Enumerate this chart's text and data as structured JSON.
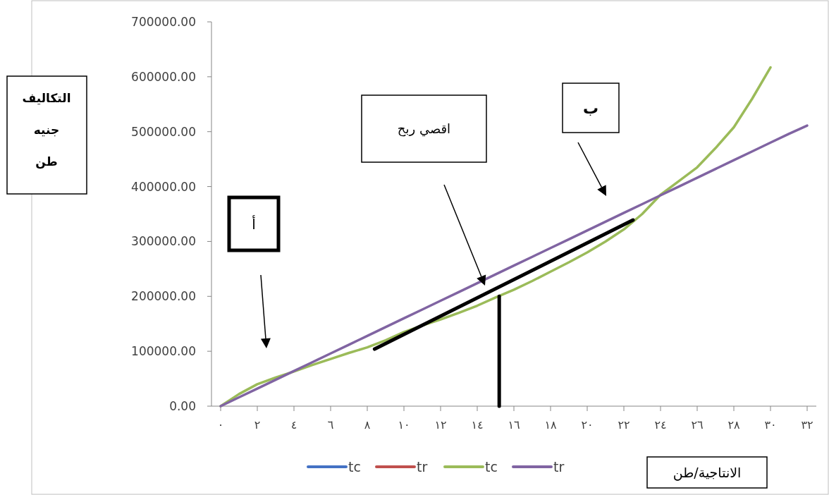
{
  "chart_data": {
    "type": "line",
    "xlabel": "الانتاجية/طن",
    "ylabel": "التكاليف جنيه طن",
    "annotations": [
      "أ",
      "اقصي ربح",
      "ب"
    ],
    "xlim": [
      -0.5,
      32.5
    ],
    "xticks": [
      {
        "value": 0,
        "label": "٠"
      },
      {
        "value": 2,
        "label": "٢"
      },
      {
        "value": 4,
        "label": "٤"
      },
      {
        "value": 6,
        "label": "٦"
      },
      {
        "value": 8,
        "label": "٨"
      },
      {
        "value": 10,
        "label": "١٠"
      },
      {
        "value": 12,
        "label": "١٢"
      },
      {
        "value": 14,
        "label": "١٤"
      },
      {
        "value": 16,
        "label": "١٦"
      },
      {
        "value": 18,
        "label": "١٨"
      },
      {
        "value": 20,
        "label": "٢٠"
      },
      {
        "value": 22,
        "label": "٢٢"
      },
      {
        "value": 24,
        "label": "٢٤"
      },
      {
        "value": 26,
        "label": "٢٦"
      },
      {
        "value": 28,
        "label": "٢٨"
      },
      {
        "value": 30,
        "label": "٣٠"
      },
      {
        "value": 32,
        "label": "٣٢"
      }
    ],
    "ylim": [
      0,
      700000
    ],
    "yticks": [
      {
        "value": 0,
        "label": "0.00"
      },
      {
        "value": 100000,
        "label": "100000.00"
      },
      {
        "value": 200000,
        "label": "200000.00"
      },
      {
        "value": 300000,
        "label": "300000.00"
      },
      {
        "value": 400000,
        "label": "400000.00"
      },
      {
        "value": 500000,
        "label": "500000.00"
      },
      {
        "value": 600000,
        "label": "600000.00"
      },
      {
        "value": 700000,
        "label": "700000.00"
      }
    ],
    "x": [
      0,
      1,
      2,
      3,
      4,
      5,
      6,
      7,
      8,
      9,
      10,
      11,
      12,
      13,
      14,
      15,
      16,
      17,
      18,
      19,
      20,
      21,
      22,
      23,
      24,
      25,
      26,
      27,
      28,
      29,
      30,
      31,
      32
    ],
    "legend": "bottom",
    "grid": false,
    "marker": "none",
    "line_style": "solid",
    "series": [
      {
        "name": "tc",
        "color": "#4472c4",
        "values": [
          null,
          null,
          null,
          null,
          null,
          null,
          null,
          null,
          null,
          null,
          null,
          null,
          null,
          null,
          null,
          null,
          null,
          null,
          null,
          null,
          null,
          null,
          null,
          null,
          null,
          null,
          null,
          null,
          null,
          null,
          null,
          null,
          null
        ]
      },
      {
        "name": "tr",
        "color": "#c0504d",
        "values": [
          null,
          null,
          null,
          null,
          null,
          null,
          null,
          null,
          null,
          null,
          null,
          null,
          null,
          null,
          null,
          null,
          null,
          null,
          null,
          null,
          null,
          null,
          null,
          null,
          null,
          null,
          null,
          null,
          null,
          null,
          null,
          null,
          null
        ]
      },
      {
        "name": "tc",
        "color": "#9bbb59",
        "x": [
          0,
          1,
          2,
          3,
          4,
          5,
          6,
          7,
          8,
          9,
          10,
          11,
          12,
          13,
          14,
          15,
          16,
          17,
          18,
          19,
          20,
          21,
          22,
          23,
          24,
          25,
          26,
          27,
          28,
          29,
          30
        ],
        "values": [
          0,
          22000,
          40000,
          52000,
          63000,
          75000,
          86000,
          97000,
          107000,
          120000,
          135000,
          147000,
          158000,
          170000,
          183000,
          198000,
          212000,
          228000,
          245000,
          262000,
          280000,
          300000,
          322000,
          350000,
          385000,
          410000,
          435000,
          470000,
          508000,
          560000,
          617000
        ]
      },
      {
        "name": "tr",
        "color": "#8064a2",
        "values": [
          0,
          16000,
          32000,
          48000,
          64000,
          80000,
          96000,
          112000,
          128000,
          144000,
          160000,
          176000,
          192000,
          208000,
          224000,
          240000,
          256000,
          272000,
          288000,
          304000,
          320000,
          336000,
          352000,
          368000,
          384000,
          400000,
          416000,
          432000,
          448000,
          464000,
          480000,
          496000,
          511000
        ]
      },
      {
        "color": "#000000",
        "x": [
          8.4,
          22.5
        ],
        "values": [
          104000,
          339000
        ]
      },
      {
        "color": "#000000",
        "x": [
          15.2,
          15.2
        ],
        "values": [
          0,
          200000
        ]
      }
    ]
  }
}
